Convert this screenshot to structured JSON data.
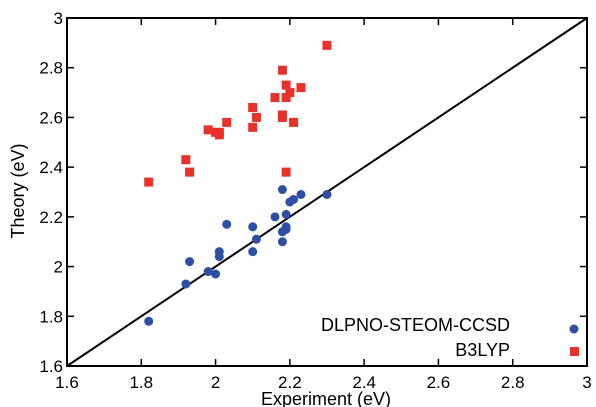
{
  "chart_data": {
    "type": "scatter",
    "xlabel": "Experiment (eV)",
    "ylabel": "Theory (eV)",
    "xlim": [
      1.6,
      3.0
    ],
    "ylim": [
      1.6,
      3.0
    ],
    "xticks": [
      "1.6",
      "1.8",
      "2",
      "2.2",
      "2.4",
      "2.6",
      "2.8",
      "3"
    ],
    "yticks": [
      "1.6",
      "1.8",
      "2",
      "2.2",
      "2.4",
      "2.6",
      "2.8",
      "3"
    ],
    "grid": false,
    "legend_position": "bottom-right",
    "reference_line": {
      "x": [
        1.6,
        3.0
      ],
      "y": [
        1.6,
        3.0
      ]
    },
    "series": [
      {
        "name": "DLPNO-STEOM-CCSD",
        "marker": "circle",
        "color": "#2e4fa3",
        "points": [
          [
            1.82,
            1.78
          ],
          [
            1.92,
            1.93
          ],
          [
            1.93,
            2.02
          ],
          [
            1.98,
            1.98
          ],
          [
            2.0,
            1.97
          ],
          [
            2.01,
            2.04
          ],
          [
            2.01,
            2.06
          ],
          [
            2.03,
            2.17
          ],
          [
            2.1,
            2.06
          ],
          [
            2.1,
            2.16
          ],
          [
            2.11,
            2.11
          ],
          [
            2.16,
            2.2
          ],
          [
            2.18,
            2.1
          ],
          [
            2.18,
            2.14
          ],
          [
            2.18,
            2.31
          ],
          [
            2.19,
            2.15
          ],
          [
            2.19,
            2.16
          ],
          [
            2.19,
            2.21
          ],
          [
            2.2,
            2.26
          ],
          [
            2.21,
            2.27
          ],
          [
            2.23,
            2.29
          ],
          [
            2.3,
            2.29
          ]
        ]
      },
      {
        "name": "B3LYP",
        "marker": "square",
        "color": "#e8312a",
        "points": [
          [
            1.82,
            2.34
          ],
          [
            1.92,
            2.43
          ],
          [
            1.93,
            2.38
          ],
          [
            1.98,
            2.55
          ],
          [
            2.0,
            2.54
          ],
          [
            2.01,
            2.53
          ],
          [
            2.01,
            2.54
          ],
          [
            2.03,
            2.58
          ],
          [
            2.1,
            2.56
          ],
          [
            2.1,
            2.64
          ],
          [
            2.11,
            2.6
          ],
          [
            2.16,
            2.68
          ],
          [
            2.18,
            2.6
          ],
          [
            2.18,
            2.61
          ],
          [
            2.18,
            2.79
          ],
          [
            2.19,
            2.38
          ],
          [
            2.19,
            2.68
          ],
          [
            2.19,
            2.73
          ],
          [
            2.2,
            2.7
          ],
          [
            2.21,
            2.58
          ],
          [
            2.23,
            2.72
          ],
          [
            2.3,
            2.89
          ]
        ]
      }
    ]
  }
}
